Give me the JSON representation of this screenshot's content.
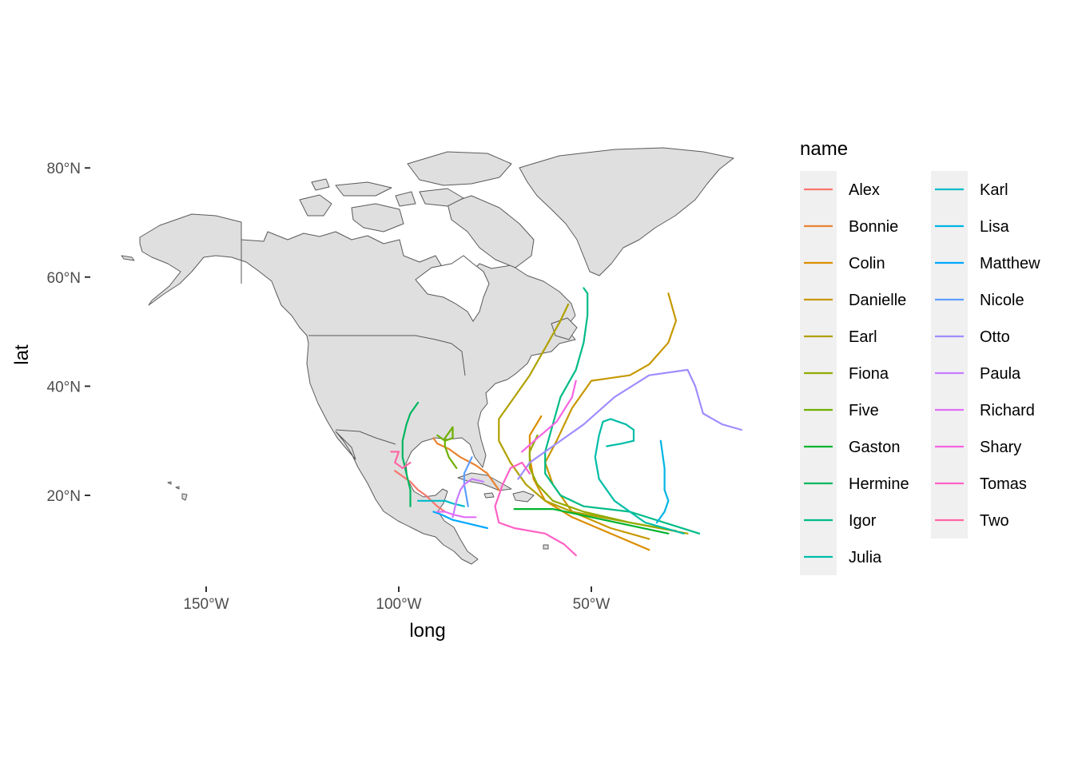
{
  "chart_data": {
    "type": "map",
    "xlabel": "long",
    "ylabel": "lat",
    "x_ticks": [
      {
        "value": -150,
        "label": "150°W"
      },
      {
        "value": -100,
        "label": "100°W"
      },
      {
        "value": -50,
        "label": "50°W"
      }
    ],
    "y_ticks": [
      {
        "value": 20,
        "label": "20°N"
      },
      {
        "value": 40,
        "label": "40°N"
      },
      {
        "value": 60,
        "label": "60°N"
      },
      {
        "value": 80,
        "label": "80°N"
      }
    ],
    "xlim": [
      -182,
      -4
    ],
    "ylim": [
      4,
      86
    ],
    "land_fill": "#dfdfdf",
    "land_stroke": "#5a5a5a",
    "legend": {
      "title": "name",
      "position": "right",
      "columns": 2,
      "background": "#f0f0f0"
    },
    "series": [
      {
        "name": "Alex",
        "color": "#F8766D",
        "points": [
          [
            -88,
            17
          ],
          [
            -90,
            18
          ],
          [
            -93,
            20
          ],
          [
            -95,
            21
          ],
          [
            -97,
            22.5
          ],
          [
            -99,
            23.5
          ],
          [
            -101,
            24.5
          ]
        ]
      },
      {
        "name": "Bonnie",
        "color": "#EA8331",
        "points": [
          [
            -74,
            21
          ],
          [
            -77,
            24
          ],
          [
            -80,
            25.5
          ],
          [
            -84,
            27
          ],
          [
            -87,
            28.5
          ],
          [
            -90,
            29.5
          ],
          [
            -91,
            30.5
          ]
        ]
      },
      {
        "name": "Colin",
        "color": "#DB8E00",
        "points": [
          [
            -35,
            10
          ],
          [
            -45,
            13
          ],
          [
            -55,
            16
          ],
          [
            -62,
            19
          ],
          [
            -65,
            23
          ],
          [
            -66,
            27
          ],
          [
            -66,
            31
          ],
          [
            -63,
            34.5
          ]
        ]
      },
      {
        "name": "Danielle",
        "color": "#C79800",
        "points": [
          [
            -35,
            12
          ],
          [
            -45,
            14
          ],
          [
            -55,
            17
          ],
          [
            -60,
            22
          ],
          [
            -62,
            26
          ],
          [
            -59,
            30
          ],
          [
            -55,
            36
          ],
          [
            -50,
            41
          ],
          [
            -40,
            42
          ],
          [
            -35,
            44
          ],
          [
            -30,
            48
          ],
          [
            -28,
            52
          ],
          [
            -30,
            57
          ]
        ]
      },
      {
        "name": "Earl",
        "color": "#B0A100",
        "points": [
          [
            -25,
            13
          ],
          [
            -40,
            15
          ],
          [
            -55,
            17
          ],
          [
            -62,
            19
          ],
          [
            -67,
            22
          ],
          [
            -71,
            26
          ],
          [
            -74,
            30
          ],
          [
            -74,
            34
          ],
          [
            -70,
            38
          ],
          [
            -66,
            42
          ],
          [
            -62,
            47
          ],
          [
            -58,
            52
          ],
          [
            -56,
            55
          ]
        ]
      },
      {
        "name": "Fiona",
        "color": "#94AA00",
        "points": [
          [
            -28,
            13.5
          ],
          [
            -40,
            15
          ],
          [
            -52,
            17
          ],
          [
            -60,
            19
          ],
          [
            -64,
            22
          ],
          [
            -66,
            25
          ],
          [
            -66,
            28
          ],
          [
            -64,
            31
          ]
        ]
      },
      {
        "name": "Five",
        "color": "#6FB000",
        "points": [
          [
            -85,
            25
          ],
          [
            -87,
            27
          ],
          [
            -88,
            29
          ],
          [
            -88,
            30.5
          ],
          [
            -87,
            31.5
          ],
          [
            -86,
            32.5
          ],
          [
            -86,
            30.5
          ],
          [
            -88,
            30
          ],
          [
            -90,
            31
          ]
        ]
      },
      {
        "name": "Gaston",
        "color": "#00B42E",
        "points": [
          [
            -30,
            13
          ],
          [
            -40,
            14.5
          ],
          [
            -50,
            16
          ],
          [
            -60,
            17.5
          ],
          [
            -70,
            17.5
          ]
        ]
      },
      {
        "name": "Hermine",
        "color": "#00B65F",
        "points": [
          [
            -97,
            18
          ],
          [
            -97,
            21
          ],
          [
            -98,
            24
          ],
          [
            -99,
            27
          ],
          [
            -99,
            30
          ],
          [
            -98,
            33
          ],
          [
            -97,
            35
          ],
          [
            -95,
            37
          ]
        ]
      },
      {
        "name": "Igor",
        "color": "#00BB87",
        "points": [
          [
            -22,
            13
          ],
          [
            -40,
            17
          ],
          [
            -52,
            18
          ],
          [
            -58,
            20
          ],
          [
            -62,
            24
          ],
          [
            -62,
            28
          ],
          [
            -60,
            33
          ],
          [
            -58,
            38
          ],
          [
            -54,
            43
          ],
          [
            -52,
            48
          ],
          [
            -51,
            53
          ],
          [
            -51,
            57
          ],
          [
            -52,
            58
          ]
        ]
      },
      {
        "name": "Julia",
        "color": "#00BDA8",
        "points": [
          [
            -26,
            13
          ],
          [
            -36,
            15
          ],
          [
            -44,
            19
          ],
          [
            -48,
            23
          ],
          [
            -49,
            27
          ],
          [
            -48,
            31
          ],
          [
            -47,
            33.5
          ],
          [
            -45,
            34
          ],
          [
            -41,
            33
          ],
          [
            -39,
            32
          ],
          [
            -39,
            30
          ],
          [
            -42,
            29.5
          ],
          [
            -46,
            29
          ]
        ]
      },
      {
        "name": "Karl",
        "color": "#00BBC9",
        "points": [
          [
            -83,
            18
          ],
          [
            -86,
            18.5
          ],
          [
            -88,
            19
          ],
          [
            -90,
            19
          ],
          [
            -93,
            19
          ],
          [
            -95,
            19
          ]
        ]
      },
      {
        "name": "Lisa",
        "color": "#00B4E4",
        "points": [
          [
            -32,
            30
          ],
          [
            -31,
            25
          ],
          [
            -31,
            21
          ],
          [
            -30,
            19
          ],
          [
            -31,
            17
          ],
          [
            -33,
            15
          ]
        ]
      },
      {
        "name": "Matthew",
        "color": "#00A8FF",
        "points": [
          [
            -77,
            14
          ],
          [
            -80,
            14.5
          ],
          [
            -83,
            15
          ],
          [
            -86,
            15.5
          ],
          [
            -89,
            16.5
          ],
          [
            -91,
            17
          ]
        ]
      },
      {
        "name": "Nicole",
        "color": "#5D9FFF",
        "points": [
          [
            -82,
            18
          ],
          [
            -82.5,
            20
          ],
          [
            -83,
            22
          ],
          [
            -83,
            24
          ],
          [
            -81,
            27
          ]
        ]
      },
      {
        "name": "Otto",
        "color": "#9E8EFF",
        "points": [
          [
            -69,
            23
          ],
          [
            -66,
            26
          ],
          [
            -60,
            29
          ],
          [
            -52,
            33
          ],
          [
            -44,
            38
          ],
          [
            -35,
            42
          ],
          [
            -25,
            43
          ],
          [
            -23,
            40
          ],
          [
            -21,
            35
          ],
          [
            -16,
            33
          ],
          [
            -11,
            32
          ]
        ]
      },
      {
        "name": "Paula",
        "color": "#C77CFF",
        "points": [
          [
            -86,
            16
          ],
          [
            -85,
            19
          ],
          [
            -84,
            21
          ],
          [
            -83,
            22
          ],
          [
            -81,
            23
          ],
          [
            -78,
            22.5
          ]
        ]
      },
      {
        "name": "Richard",
        "color": "#E36EF6",
        "points": [
          [
            -80,
            16
          ],
          [
            -83,
            16
          ],
          [
            -86,
            16.5
          ],
          [
            -88,
            17
          ],
          [
            -90,
            17
          ]
        ]
      },
      {
        "name": "Shary",
        "color": "#F564E3",
        "points": [
          [
            -68,
            28
          ],
          [
            -64,
            30.5
          ],
          [
            -59,
            33.5
          ],
          [
            -55,
            38
          ],
          [
            -54,
            41
          ]
        ]
      },
      {
        "name": "Tomas",
        "color": "#FF61C5",
        "points": [
          [
            -54,
            9
          ],
          [
            -57,
            11
          ],
          [
            -62,
            13
          ],
          [
            -70,
            14
          ],
          [
            -74,
            15
          ],
          [
            -75,
            18
          ],
          [
            -73,
            22
          ],
          [
            -71,
            25
          ],
          [
            -68,
            26
          ],
          [
            -66,
            24
          ]
        ]
      },
      {
        "name": "Two",
        "color": "#FF67A4",
        "points": [
          [
            -97,
            26
          ],
          [
            -99,
            25
          ],
          [
            -101,
            26
          ],
          [
            -100,
            28
          ],
          [
            -102,
            28
          ]
        ]
      }
    ]
  }
}
